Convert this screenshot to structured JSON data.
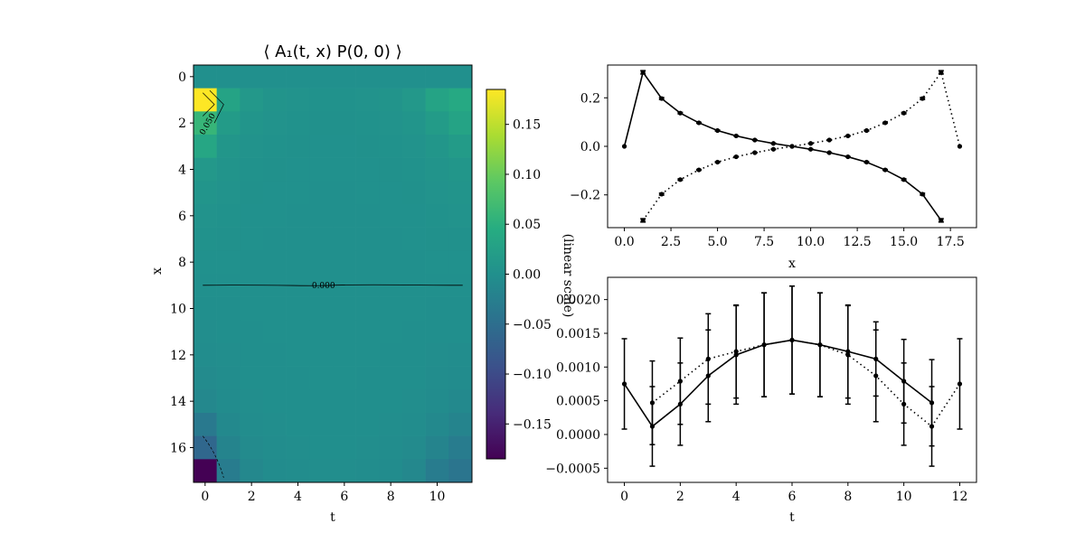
{
  "chart_data": [
    {
      "type": "heatmap",
      "title": "⟨ A₁(t, x) P(0, 0) ⟩",
      "xlabel": "t",
      "ylabel": "x",
      "xlim": [
        -0.5,
        11.5
      ],
      "ylim": [
        17.5,
        -0.5
      ],
      "xticks": [
        "0",
        "2",
        "4",
        "6",
        "8",
        "10"
      ],
      "yticks": [
        "0",
        "2",
        "4",
        "6",
        "8",
        "10",
        "12",
        "14",
        "16"
      ],
      "colorscale": "viridis",
      "vmin": -0.185,
      "vmax": 0.185,
      "colorbar_ticks": [
        "0.15",
        "0.10",
        "0.05",
        "0.00",
        "−0.05",
        "−0.10",
        "−0.15"
      ],
      "contour_labels": [
        "0.050",
        "0.000"
      ],
      "rows": 18,
      "cols": 12,
      "values": [
        [
          0.0,
          0.0,
          0.0,
          0.0,
          0.0,
          0.0,
          0.0,
          0.0,
          0.0,
          0.0,
          0.0,
          0.0
        ],
        [
          0.185,
          0.03,
          0.012,
          0.006,
          0.004,
          0.003,
          0.003,
          0.004,
          0.006,
          0.012,
          0.03,
          0.04
        ],
        [
          0.06,
          0.018,
          0.008,
          0.004,
          0.003,
          0.002,
          0.002,
          0.003,
          0.004,
          0.008,
          0.018,
          0.03
        ],
        [
          0.035,
          0.01,
          0.005,
          0.003,
          0.002,
          0.001,
          0.001,
          0.002,
          0.003,
          0.005,
          0.01,
          0.018
        ],
        [
          0.012,
          0.006,
          0.003,
          0.002,
          0.001,
          0.001,
          0.001,
          0.001,
          0.002,
          0.003,
          0.006,
          0.01
        ],
        [
          0.008,
          0.004,
          0.002,
          0.001,
          0.001,
          0.0,
          0.0,
          0.001,
          0.001,
          0.002,
          0.004,
          0.006
        ],
        [
          0.005,
          0.003,
          0.001,
          0.001,
          0.0,
          0.0,
          0.0,
          0.0,
          0.001,
          0.001,
          0.003,
          0.004
        ],
        [
          0.003,
          0.002,
          0.001,
          0.0,
          0.0,
          0.0,
          0.0,
          0.0,
          0.0,
          0.001,
          0.002,
          0.002
        ],
        [
          0.001,
          0.001,
          0.0,
          0.0,
          0.0,
          0.0,
          0.0,
          0.0,
          0.0,
          0.0,
          0.001,
          0.001
        ],
        [
          0.0,
          0.0,
          0.0,
          0.0,
          0.0,
          0.0,
          0.0,
          0.0,
          0.0,
          0.0,
          0.0,
          0.0
        ],
        [
          -0.001,
          -0.001,
          0.0,
          0.0,
          0.0,
          0.0,
          0.0,
          0.0,
          0.0,
          0.0,
          -0.001,
          -0.001
        ],
        [
          -0.003,
          -0.002,
          -0.001,
          0.0,
          0.0,
          0.0,
          0.0,
          0.0,
          0.0,
          -0.001,
          -0.002,
          -0.002
        ],
        [
          -0.005,
          -0.003,
          -0.001,
          -0.001,
          0.0,
          0.0,
          0.0,
          0.0,
          -0.001,
          -0.001,
          -0.003,
          -0.004
        ],
        [
          -0.008,
          -0.004,
          -0.002,
          -0.001,
          -0.001,
          0.0,
          0.0,
          -0.001,
          -0.001,
          -0.002,
          -0.004,
          -0.006
        ],
        [
          -0.012,
          -0.006,
          -0.003,
          -0.002,
          -0.001,
          -0.001,
          -0.001,
          -0.001,
          -0.002,
          -0.003,
          -0.006,
          -0.01
        ],
        [
          -0.035,
          -0.01,
          -0.005,
          -0.003,
          -0.002,
          -0.001,
          -0.001,
          -0.002,
          -0.003,
          -0.005,
          -0.01,
          -0.018
        ],
        [
          -0.06,
          -0.018,
          -0.008,
          -0.004,
          -0.003,
          -0.002,
          -0.002,
          -0.003,
          -0.004,
          -0.008,
          -0.018,
          -0.03
        ],
        [
          -0.185,
          -0.03,
          -0.012,
          -0.006,
          -0.004,
          -0.003,
          -0.003,
          -0.004,
          -0.006,
          -0.012,
          -0.03,
          -0.04
        ]
      ]
    },
    {
      "type": "line",
      "xlabel": "x",
      "ylabel": "",
      "xlim": [
        -0.9,
        18.9
      ],
      "ylim": [
        -0.335,
        0.335
      ],
      "xticks": [
        "0.0",
        "2.5",
        "5.0",
        "7.5",
        "10.0",
        "12.5",
        "15.0",
        "17.5"
      ],
      "yticks": [
        "0.2",
        "0.0",
        "−0.2"
      ],
      "series": [
        {
          "style": "solid",
          "x": [
            0,
            1,
            2,
            3,
            4,
            5,
            6,
            7,
            8,
            9,
            10,
            11,
            12,
            13,
            14,
            15,
            16,
            17
          ],
          "y": [
            0.0,
            0.305,
            0.197,
            0.137,
            0.097,
            0.065,
            0.043,
            0.026,
            0.012,
            0.0,
            -0.012,
            -0.026,
            -0.043,
            -0.065,
            -0.097,
            -0.137,
            -0.197,
            -0.305
          ],
          "err": [
            0,
            0.007,
            0.004,
            0.003,
            0.002,
            0.002,
            0.001,
            0.001,
            0.001,
            0.0,
            0.001,
            0.001,
            0.001,
            0.002,
            0.002,
            0.003,
            0.004,
            0.007
          ]
        },
        {
          "style": "dotted",
          "x": [
            1,
            2,
            3,
            4,
            5,
            6,
            7,
            8,
            9,
            10,
            11,
            12,
            13,
            14,
            15,
            16,
            17,
            18
          ],
          "y": [
            -0.305,
            -0.197,
            -0.137,
            -0.097,
            -0.065,
            -0.043,
            -0.026,
            -0.012,
            0.0,
            0.012,
            0.026,
            0.043,
            0.065,
            0.097,
            0.137,
            0.197,
            0.305,
            0.0
          ],
          "err": [
            0.007,
            0.004,
            0.003,
            0.002,
            0.002,
            0.001,
            0.001,
            0.001,
            0.0,
            0.001,
            0.001,
            0.001,
            0.002,
            0.002,
            0.003,
            0.004,
            0.007,
            0
          ]
        }
      ]
    },
    {
      "type": "line",
      "xlabel": "t",
      "ylabel": "(linear scale)",
      "xlim": [
        -0.6,
        12.6
      ],
      "ylim": [
        -0.00071,
        0.00233
      ],
      "xticks": [
        "0",
        "2",
        "4",
        "6",
        "8",
        "10",
        "12"
      ],
      "yticks": [
        "0.0020",
        "0.0015",
        "0.0010",
        "0.0005",
        "0.0000",
        "−0.0005"
      ],
      "series": [
        {
          "style": "solid",
          "x": [
            0,
            1,
            2,
            3,
            4,
            5,
            6,
            7,
            8,
            9,
            10,
            11
          ],
          "y": [
            0.00075,
            0.00012,
            0.00045,
            0.00087,
            0.00118,
            0.00133,
            0.0014,
            0.00133,
            0.00123,
            0.00112,
            0.00079,
            0.00047
          ],
          "err": [
            0.00067,
            0.00059,
            0.00061,
            0.00068,
            0.00073,
            0.00077,
            0.0008,
            0.00077,
            0.00069,
            0.00055,
            0.00062,
            0.00064
          ]
        },
        {
          "style": "dotted",
          "x": [
            1,
            2,
            3,
            4,
            5,
            6,
            7,
            8,
            9,
            10,
            11,
            12
          ],
          "y": [
            0.00047,
            0.00079,
            0.00112,
            0.00123,
            0.00133,
            0.0014,
            0.00133,
            0.00118,
            0.00087,
            0.00045,
            0.00012,
            0.00075
          ],
          "err": [
            0.00062,
            0.00064,
            0.00067,
            0.00069,
            0.00077,
            0.0008,
            0.00077,
            0.00073,
            0.00068,
            0.00061,
            0.00059,
            0.00067
          ]
        }
      ]
    }
  ]
}
